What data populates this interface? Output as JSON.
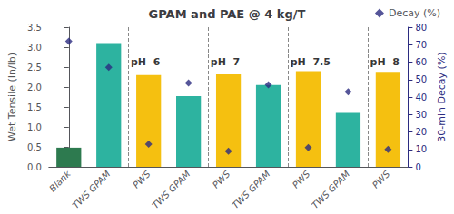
{
  "chart_data": {
    "type": "bar",
    "title": "GPAM and PAE @ 4 kg/T",
    "categories": [
      "Blank",
      "TWS GPAM",
      "PWS",
      "TWS GPAM",
      "PWS",
      "TWS GPAM",
      "PWS",
      "TWS GPAM",
      "PWS"
    ],
    "series": [
      {
        "type": "bar",
        "colors": [
          "#2d7a4f",
          "#2db3a0",
          "#f5c010",
          "#2db3a0",
          "#f5c010",
          "#2db3a0",
          "#f5c010",
          "#2db3a0",
          "#f5c010"
        ],
        "values": [
          0.48,
          3.1,
          2.3,
          1.77,
          2.32,
          2.05,
          2.4,
          1.35,
          2.38
        ]
      },
      {
        "name": "Decay (%)",
        "type": "scatter",
        "axis": "y2",
        "color": "#2b2b80",
        "marker": "diamond",
        "values": [
          72,
          57,
          13,
          48,
          9,
          47,
          11,
          43,
          10
        ]
      }
    ],
    "ylabel": "Wet Tensile (In/lb)",
    "y2label": "30-min Decay (%)",
    "ylim": [
      0,
      3.5
    ],
    "yticks": [
      {
        "value": 0.0,
        "label": "0.0"
      },
      0.5,
      {
        "value": 1.0,
        "label": "1.0"
      },
      1.5,
      {
        "value": 2.0,
        "label": "2.0"
      },
      2.5,
      {
        "value": 3.0,
        "label": "3.0"
      },
      3.5
    ],
    "y2lim": [
      0,
      80
    ],
    "y2ticks": [
      0,
      10,
      20,
      30,
      40,
      50,
      60,
      70,
      80
    ],
    "annotations": [
      {
        "text": "pH  6",
        "x": 1.55,
        "y": 2.62
      },
      {
        "text": "pH  7",
        "x": 3.55,
        "y": 2.62
      },
      {
        "text": "pH  7.5",
        "x": 5.55,
        "y": 2.62
      },
      {
        "text": "pH  8",
        "x": 7.55,
        "y": 2.62
      }
    ],
    "dividers": [
      1.5,
      3.5,
      5.5,
      7.5
    ],
    "grid": false,
    "legend": "upper right"
  }
}
